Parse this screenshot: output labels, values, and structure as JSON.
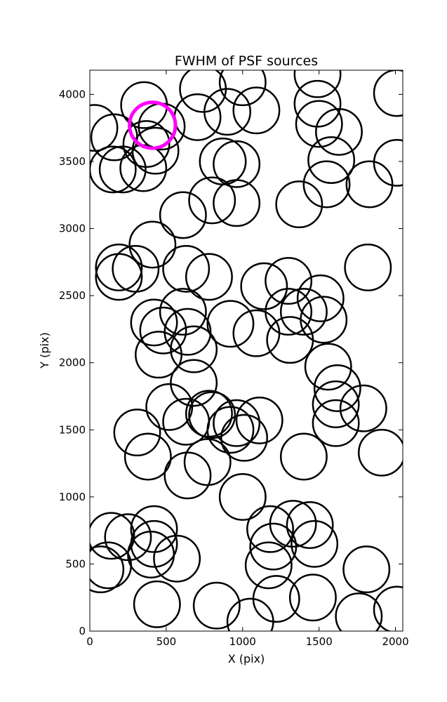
{
  "chart_data": {
    "type": "scatter",
    "title": "FWHM of PSF sources",
    "xlabel": "X (pix)",
    "ylabel": "Y (pix)",
    "xlim": [
      0,
      2048
    ],
    "ylim": [
      0,
      4180
    ],
    "xticks": [
      0,
      500,
      1000,
      1500,
      2000
    ],
    "yticks": [
      0,
      500,
      1000,
      1500,
      2000,
      2500,
      3000,
      3500,
      4000
    ],
    "marker": "open-circle",
    "marker_radius": 150,
    "series": [
      {
        "color": "#000000",
        "points": [
          [
            30,
            3750
          ],
          [
            160,
            3680
          ],
          [
            150,
            3440
          ],
          [
            215,
            3440
          ],
          [
            355,
            3920
          ],
          [
            370,
            3630
          ],
          [
            350,
            3450
          ],
          [
            430,
            3580
          ],
          [
            470,
            3760
          ],
          [
            740,
            4040
          ],
          [
            705,
            3830
          ],
          [
            900,
            3870
          ],
          [
            1000,
            4090
          ],
          [
            1090,
            3880
          ],
          [
            870,
            3500
          ],
          [
            960,
            3480
          ],
          [
            1490,
            4150
          ],
          [
            1490,
            3930
          ],
          [
            1500,
            3780
          ],
          [
            1630,
            3720
          ],
          [
            1580,
            3510
          ],
          [
            1550,
            3330
          ],
          [
            2010,
            4010
          ],
          [
            2010,
            3490
          ],
          [
            1830,
            3330
          ],
          [
            610,
            3100
          ],
          [
            800,
            3210
          ],
          [
            960,
            3190
          ],
          [
            1370,
            3180
          ],
          [
            410,
            2880
          ],
          [
            190,
            2710
          ],
          [
            190,
            2640
          ],
          [
            300,
            2700
          ],
          [
            630,
            2700
          ],
          [
            780,
            2640
          ],
          [
            1140,
            2570
          ],
          [
            1300,
            2610
          ],
          [
            1820,
            2710
          ],
          [
            610,
            2380
          ],
          [
            420,
            2300
          ],
          [
            480,
            2240
          ],
          [
            640,
            2230
          ],
          [
            920,
            2290
          ],
          [
            1090,
            2220
          ],
          [
            1300,
            2380
          ],
          [
            1400,
            2380
          ],
          [
            1510,
            2480
          ],
          [
            1530,
            2320
          ],
          [
            1310,
            2170
          ],
          [
            450,
            2060
          ],
          [
            680,
            2100
          ],
          [
            680,
            1850
          ],
          [
            1560,
            1970
          ],
          [
            1620,
            1810
          ],
          [
            1610,
            1690
          ],
          [
            1790,
            1660
          ],
          [
            520,
            1670
          ],
          [
            630,
            1560
          ],
          [
            780,
            1620
          ],
          [
            800,
            1610
          ],
          [
            920,
            1500
          ],
          [
            960,
            1550
          ],
          [
            1010,
            1440
          ],
          [
            1110,
            1570
          ],
          [
            1610,
            1550
          ],
          [
            310,
            1480
          ],
          [
            380,
            1300
          ],
          [
            640,
            1160
          ],
          [
            770,
            1260
          ],
          [
            1400,
            1300
          ],
          [
            1910,
            1330
          ],
          [
            1000,
            1000
          ],
          [
            140,
            710
          ],
          [
            250,
            700
          ],
          [
            420,
            760
          ],
          [
            420,
            650
          ],
          [
            400,
            570
          ],
          [
            570,
            540
          ],
          [
            120,
            490
          ],
          [
            70,
            460
          ],
          [
            1180,
            760
          ],
          [
            1200,
            630
          ],
          [
            1170,
            490
          ],
          [
            1330,
            800
          ],
          [
            1440,
            790
          ],
          [
            1470,
            650
          ],
          [
            1810,
            460
          ],
          [
            440,
            200
          ],
          [
            830,
            190
          ],
          [
            1050,
            70
          ],
          [
            1220,
            240
          ],
          [
            1460,
            250
          ],
          [
            1760,
            110
          ],
          [
            2010,
            160
          ]
        ]
      },
      {
        "color": "#ff00ff",
        "points": [
          [
            410,
            3770
          ]
        ]
      }
    ],
    "grid": false,
    "legend": ""
  }
}
